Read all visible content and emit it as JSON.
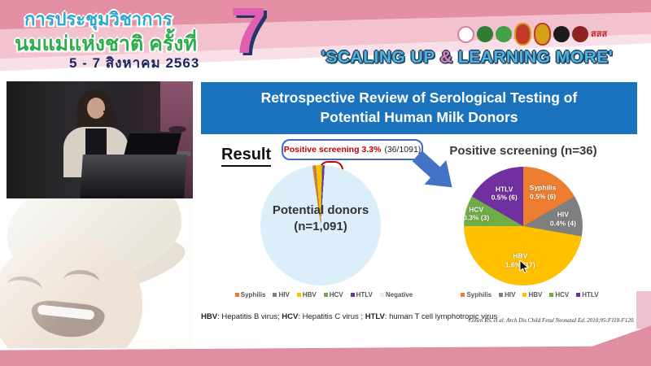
{
  "banner": {
    "title_line1": "การประชุมวิชาการ",
    "title_line2": "นมแม่แห่งชาติ ครั้งที่",
    "date_line": "5 - 7 สิงหาคม 2563",
    "edition_number": "7",
    "slogan_prefix": "'SCALING UP ",
    "slogan_amp": "&",
    "slogan_suffix": " LEARNING MORE'",
    "logos": [
      {
        "name": "mother-and-child-foundation-logo",
        "label": ""
      },
      {
        "name": "green-health-department-logo",
        "label": ""
      },
      {
        "name": "green-public-health-logo",
        "label": ""
      },
      {
        "name": "royal-red-gold-emblem-logo",
        "label": ""
      },
      {
        "name": "royal-crown-emblem-logo",
        "label": ""
      },
      {
        "name": "black-university-seal-logo",
        "label": ""
      },
      {
        "name": "dark-red-seal-logo",
        "label": ""
      },
      {
        "name": "thai-health-promotion-logo",
        "label": "สสส"
      }
    ]
  },
  "slide": {
    "title_line1": "Retrospective Review of Serological Testing of",
    "title_line2": "Potential Human Milk Donors",
    "result_label": "Result",
    "callout": {
      "highlight": "Positive screening 3.3%",
      "detail": "(36/1091)"
    },
    "footnote": [
      {
        "abbr": "HBV",
        "desc": ": Hepatitis B virus; "
      },
      {
        "abbr": "HCV",
        "desc": ": Hepatitis C virus ; "
      },
      {
        "abbr": "HTLV",
        "desc": ": human T cell lymphotropic virus"
      }
    ],
    "citation": "Cohen RS, et al. Arch Dis Child Fetal Neonatal Ed. 2010;95:F118-F120."
  },
  "chart_data": [
    {
      "type": "pie",
      "name": "potential-donors",
      "center_label_line1": "Potential donors",
      "center_label_line2": "(n=1,091)",
      "total": 1091,
      "start_angle": -8,
      "legend_position": "bottom",
      "slices": [
        {
          "label": "Syphilis",
          "value": 6,
          "color": "#ED7D31"
        },
        {
          "label": "HIV",
          "value": 4,
          "color": "#7F7F7F"
        },
        {
          "label": "HBV",
          "value": 17,
          "color": "#FFC000"
        },
        {
          "label": "HCV",
          "value": 3,
          "color": "#70AD47"
        },
        {
          "label": "HTLV",
          "value": 6,
          "color": "#7030A0"
        },
        {
          "label": "Negative",
          "value": 1055,
          "color": "#DBEEF9"
        }
      ]
    },
    {
      "type": "pie",
      "name": "positive-screening",
      "title": "Positive screening (n=36)",
      "total": 36,
      "start_angle": 0,
      "legend_position": "bottom",
      "slices": [
        {
          "label": "Syphilis",
          "value": 6,
          "pct_label": "0.5% (6)",
          "color": "#ED7D31"
        },
        {
          "label": "HIV",
          "value": 4,
          "pct_label": "0.4% (4)",
          "color": "#7F7F7F"
        },
        {
          "label": "HBV",
          "value": 17,
          "pct_label": "1.6% (17)",
          "color": "#FFC000"
        },
        {
          "label": "HCV",
          "value": 3,
          "pct_label": "0.3% (3)",
          "color": "#70AD47"
        },
        {
          "label": "HTLV",
          "value": 6,
          "pct_label": "0.5% (6)",
          "color": "#7030A0"
        }
      ]
    }
  ],
  "colors": {
    "slide_title_bar": "#1B72BD",
    "flow_arrow": "#4472C4",
    "highlight_red": "#C00000",
    "banner_pink": "#E58FA4",
    "slogan_blue": "#4FB3DC",
    "bottom_wave_pink": "#E08FA3"
  }
}
